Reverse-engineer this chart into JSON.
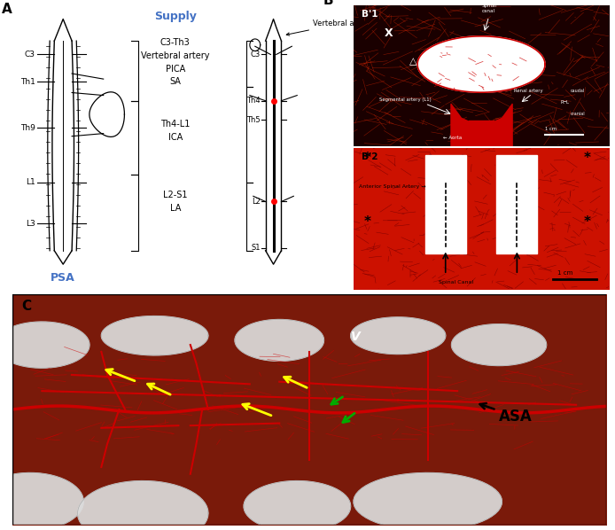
{
  "panel_A_label": "A",
  "panel_B_label": "B",
  "panel_C_label": "C",
  "panel_B1_label": "B’1",
  "panel_B2_label": "B’2",
  "supply_title": "Supply",
  "supply_title_color": "#4472C4",
  "PSA_label": "PSA",
  "PSA_color": "#4472C4",
  "supply_text_1": "C3-Th3\nVertebral artery\nPICA\nSA",
  "supply_text_2": "Th4-L1\nICA",
  "supply_text_3": "L2-S1\nLA",
  "labels_left": [
    "C3",
    "Th1",
    "Th9",
    "L1",
    "L3"
  ],
  "labels_right_ASA": [
    "C3",
    "Th4",
    "Th5",
    "L2",
    "S1"
  ],
  "bg_color": "#ffffff",
  "figure_width": 6.94,
  "figure_height": 5.98,
  "dpi": 100
}
